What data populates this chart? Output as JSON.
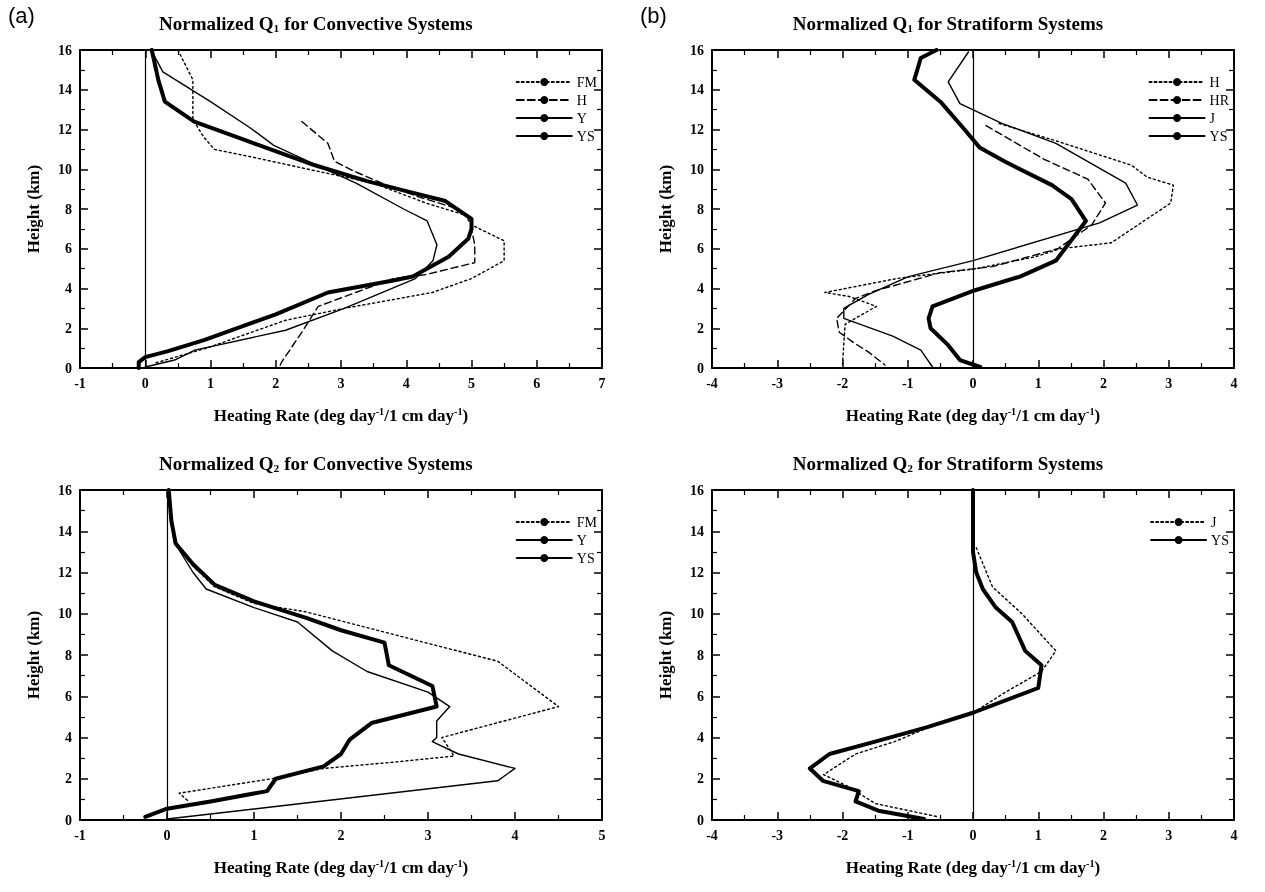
{
  "chart_data": [
    {
      "type": "line",
      "title": "Normalized Q$_{1}$ for Convective Systems",
      "xlabel": "Heating Rate (deg day$^{-1}$/1 cm day$^{-1}$)",
      "ylabel": "Height (km)",
      "annotations": [
        "(a)"
      ],
      "xlim": [
        -1,
        7
      ],
      "xticks": [
        -1,
        0,
        1,
        2,
        3,
        4,
        5,
        6,
        7
      ],
      "ylim": [
        0,
        16
      ],
      "yticks": [
        0,
        2,
        4,
        6,
        8,
        10,
        12,
        14,
        16
      ],
      "legend": "top right",
      "ref_lines": [
        {
          "axis": "x",
          "value": 0,
          "color": "#000000"
        }
      ],
      "series": [
        {
          "name": "FM",
          "color": "#000000",
          "line_style": "dotted",
          "x": [
            0.5,
            0.73,
            0.73,
            0.9,
            1.06,
            1.66,
            2.5,
            3.5,
            4.3,
            4.9,
            5.0,
            5.5,
            5.5,
            5.0,
            4.4,
            3.05,
            2.15,
            0.94,
            0.15
          ],
          "values": [
            16,
            14.5,
            12.5,
            11.6,
            11,
            10.6,
            10,
            9.3,
            8.3,
            7.7,
            7.2,
            6.4,
            5.4,
            4.5,
            3.8,
            3.0,
            2.4,
            1.0,
            0.25
          ]
        },
        {
          "name": "H",
          "color": "#000000",
          "line_style": "dashed",
          "x": [
            2.4,
            2.8,
            2.9,
            3.2,
            3.7,
            4.2,
            4.8,
            5.0,
            5.0,
            5.05,
            5.05,
            4.3,
            3.8,
            2.65,
            2.42,
            2.09,
            2.05
          ],
          "values": [
            12.4,
            11.3,
            10.4,
            9.9,
            9.2,
            8.6,
            8.0,
            7.5,
            7.0,
            6.2,
            5.3,
            4.7,
            4.5,
            3.1,
            1.9,
            0.3,
            0
          ]
        },
        {
          "name": "Y",
          "color": "#000000",
          "line_style": "solid",
          "x": [
            0.09,
            0.27,
            1.0,
            1.6,
            1.97,
            2.5,
            3.23,
            3.96,
            4.32,
            4.47,
            4.41,
            4.14,
            3.05,
            2.15,
            0.76,
            0.45,
            0
          ],
          "values": [
            16,
            14.9,
            13.4,
            12.1,
            11.2,
            10.4,
            9.3,
            8.0,
            7.4,
            6.2,
            5.4,
            4.5,
            3.0,
            1.9,
            0.9,
            0.4,
            0.05
          ]
        },
        {
          "name": "YS",
          "color": "#000000",
          "line_style": "solid",
          "x": [
            0.1,
            0.2,
            0.3,
            0.75,
            1.5,
            2.6,
            3.4,
            4.0,
            4.6,
            5.0,
            5.0,
            4.95,
            4.65,
            4.1,
            3.8,
            2.8,
            2.0,
            0.9,
            0.35,
            0,
            -0.1,
            -0.1
          ],
          "values": [
            16,
            14.5,
            13.4,
            12.4,
            11.5,
            10.2,
            9.4,
            8.9,
            8.4,
            7.5,
            7.0,
            6.5,
            5.6,
            4.6,
            4.4,
            3.8,
            2.7,
            1.4,
            0.85,
            0.55,
            0.3,
            0
          ]
        }
      ]
    },
    {
      "type": "line",
      "title": "Normalized Q$_{1}$ for Stratiform Systems",
      "xlabel": "Heating Rate (deg day$^{-1}$/1 cm day$^{-1}$)",
      "ylabel": "Height (km)",
      "annotations": [
        "(b)"
      ],
      "xlim": [
        -4,
        4
      ],
      "xticks": [
        -4,
        -3,
        -2,
        -1,
        0,
        1,
        2,
        3,
        4
      ],
      "ylim": [
        0,
        16
      ],
      "yticks": [
        0,
        2,
        4,
        6,
        8,
        10,
        12,
        14,
        16
      ],
      "legend": "top right",
      "ref_lines": [
        {
          "axis": "x",
          "value": 0,
          "color": "#000000"
        }
      ],
      "series": [
        {
          "name": "H",
          "color": "#000000",
          "line_style": "dotted",
          "x": [
            0.4,
            1.3,
            2.43,
            2.67,
            3.07,
            3.03,
            2.12,
            1.33,
            0.96,
            0.05,
            -1.17,
            -2.27,
            -1.9,
            -1.48,
            -1.96,
            -2.0
          ],
          "values": [
            12.3,
            11.4,
            10.2,
            9.6,
            9.2,
            8.3,
            6.3,
            6.0,
            5.6,
            5.0,
            4.5,
            3.8,
            3.6,
            3.1,
            2.2,
            0.2
          ]
        },
        {
          "name": "HR",
          "color": "#000000",
          "line_style": "dashed",
          "x": [
            0.2,
            0.72,
            1.09,
            1.76,
            2.03,
            1.82,
            1.3,
            0.3,
            -0.5,
            -1.48,
            -1.8,
            -2.09,
            -2.05,
            -1.84,
            -1.6,
            -1.35
          ],
          "values": [
            12.2,
            11.2,
            10.5,
            9.5,
            8.3,
            7.2,
            6.0,
            5.1,
            4.8,
            3.9,
            3.5,
            2.5,
            1.8,
            1.3,
            0.8,
            0.15
          ]
        },
        {
          "name": "J",
          "color": "#000000",
          "line_style": "solid",
          "x": [
            -0.07,
            -0.38,
            -0.2,
            0.45,
            1.27,
            2.34,
            2.52,
            1.94,
            0,
            -0.99,
            -1.6,
            -1.98,
            -1.98,
            -1.23,
            -0.8,
            -0.62
          ],
          "values": [
            15.9,
            14.4,
            13.3,
            12.3,
            11.3,
            9.3,
            8.2,
            7.3,
            5.4,
            4.6,
            3.7,
            3.0,
            2.5,
            1.6,
            0.9,
            0.05
          ]
        },
        {
          "name": "YS",
          "color": "#000000",
          "line_style": "solid",
          "x": [
            -0.56,
            -0.8,
            -0.9,
            -0.5,
            -0.13,
            0.1,
            0.48,
            1.21,
            1.51,
            1.73,
            1.27,
            0.72,
            0.02,
            -0.62,
            -0.68,
            -0.65,
            -0.38,
            -0.2,
            0.11
          ],
          "values": [
            16,
            15.6,
            14.5,
            13.4,
            12.0,
            11.1,
            10.4,
            9.2,
            8.5,
            7.4,
            5.4,
            4.6,
            3.9,
            3.1,
            2.5,
            2.0,
            1.15,
            0.4,
            0.05
          ]
        }
      ]
    },
    {
      "type": "line",
      "title": "Normalized Q$_{2}$ for Convective Systems",
      "xlabel": "Heating Rate (deg day$^{-1}$/1 cm day$^{-1}$)",
      "ylabel": "Height (km)",
      "xlim": [
        -1,
        5
      ],
      "xticks": [
        -1,
        0,
        1,
        2,
        3,
        4,
        5
      ],
      "ylim": [
        0,
        16
      ],
      "yticks": [
        0,
        2,
        4,
        6,
        8,
        10,
        12,
        14,
        16
      ],
      "legend": "top right",
      "ref_lines": [
        {
          "axis": "x",
          "value": 0,
          "color": "#000000"
        }
      ],
      "series": [
        {
          "name": "FM",
          "color": "#000000",
          "line_style": "dotted",
          "x": [
            0.03,
            0.1,
            0.3,
            0.55,
            1.0,
            1.59,
            2.6,
            3.8,
            4.5,
            3.16,
            3.3,
            2.59,
            1.8,
            1.2,
            0.14,
            0.25
          ],
          "values": [
            15,
            13.5,
            12.3,
            11.3,
            10.5,
            10.1,
            9.0,
            7.7,
            5.5,
            4.0,
            3.1,
            2.8,
            2.5,
            2.0,
            1.3,
            0.9
          ]
        },
        {
          "name": "Y",
          "color": "#000000",
          "line_style": "solid",
          "x": [
            0.02,
            0.08,
            0.3,
            0.45,
            1.0,
            1.5,
            1.9,
            2.3,
            3.0,
            3.25,
            3.1,
            3.1,
            3.05,
            3.35,
            4.0,
            3.8,
            0
          ],
          "values": [
            16,
            13.5,
            12,
            11.2,
            10.3,
            9.6,
            8.2,
            7.2,
            6.2,
            5.5,
            4.8,
            4.0,
            3.8,
            3.2,
            2.5,
            1.9,
            0.05
          ]
        },
        {
          "name": "YS",
          "color": "#000000",
          "line_style": "solid",
          "x": [
            0.02,
            0.05,
            0.1,
            0.3,
            0.55,
            1.0,
            1.6,
            2.0,
            2.5,
            2.55,
            3.05,
            3.1,
            2.35,
            2.1,
            2.0,
            1.8,
            1.25,
            1.15,
            0.5,
            0,
            -0.25
          ],
          "values": [
            16,
            14.5,
            13.4,
            12.4,
            11.4,
            10.6,
            9.8,
            9.2,
            8.6,
            7.5,
            6.5,
            5.5,
            4.7,
            3.9,
            3.2,
            2.6,
            2.0,
            1.4,
            0.9,
            0.55,
            0.15
          ]
        }
      ]
    },
    {
      "type": "line",
      "title": "Normalized Q$_{2}$ for Stratiform Systems",
      "xlabel": "Heating Rate (deg day$^{-1}$/1 cm day$^{-1}$)",
      "ylabel": "Height (km)",
      "xlim": [
        -4,
        4
      ],
      "xticks": [
        -4,
        -3,
        -2,
        -1,
        0,
        1,
        2,
        3,
        4
      ],
      "ylim": [
        0,
        16
      ],
      "yticks": [
        0,
        2,
        4,
        6,
        8,
        10,
        12,
        14,
        16
      ],
      "legend": "top right",
      "ref_lines": [
        {
          "axis": "x",
          "value": 0,
          "color": "#000000"
        }
      ],
      "series": [
        {
          "name": "J",
          "color": "#000000",
          "line_style": "dotted",
          "x": [
            0.05,
            0.3,
            0.75,
            1.27,
            1.05,
            0.5,
            0,
            -0.6,
            -1.2,
            -1.8,
            -2.29,
            -1.9,
            -1.5,
            -0.53
          ],
          "values": [
            13.2,
            11.3,
            10.0,
            8.2,
            7.2,
            6.2,
            5.2,
            4.6,
            3.8,
            3.2,
            2.2,
            1.6,
            0.8,
            0.15
          ]
        },
        {
          "name": "YS",
          "color": "#000000",
          "line_style": "solid",
          "x": [
            0,
            0,
            0.05,
            0.15,
            0.35,
            0.6,
            0.8,
            1.05,
            1.0,
            0,
            -0.7,
            -1.5,
            -2.2,
            -2.5,
            -2.3,
            -1.75,
            -1.8,
            -1.45,
            -0.75
          ],
          "values": [
            16,
            13,
            12,
            11.2,
            10.3,
            9.6,
            8.2,
            7.5,
            6.4,
            5.2,
            4.5,
            3.8,
            3.2,
            2.5,
            1.9,
            1.4,
            0.9,
            0.45,
            0.05
          ]
        }
      ]
    }
  ]
}
